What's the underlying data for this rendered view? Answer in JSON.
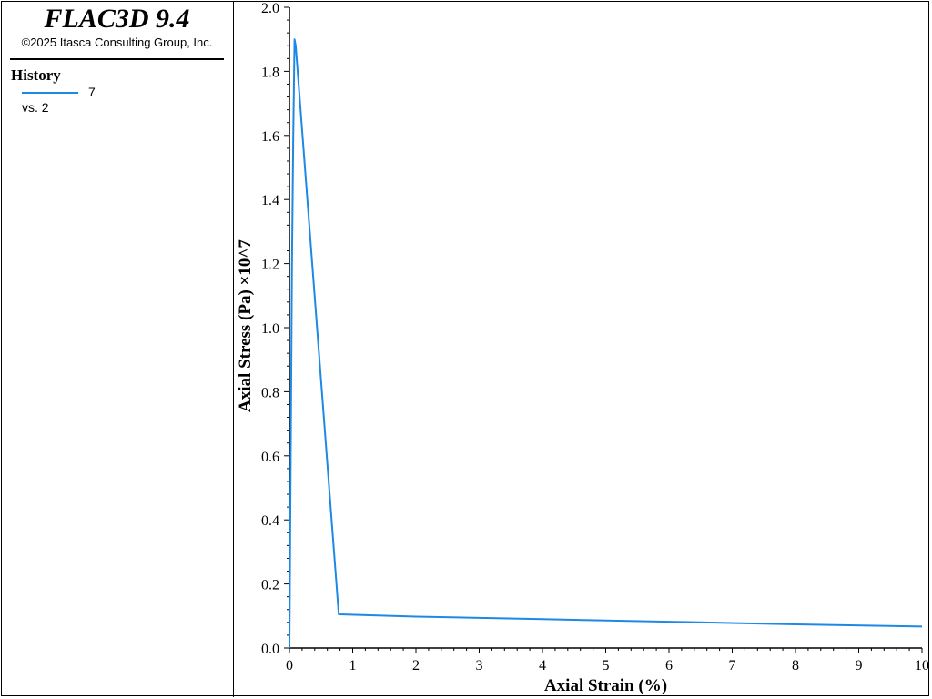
{
  "app": {
    "title": "FLAC3D 9.4",
    "copyright": "©2025 Itasca Consulting Group, Inc."
  },
  "legend": {
    "heading": "History",
    "series_id": "7",
    "vs_label": "vs. 2"
  },
  "chart_data": {
    "type": "line",
    "xlabel": "Axial Strain (%)",
    "ylabel": "Axial Stress (Pa) ×10^7",
    "xlim": [
      0,
      10
    ],
    "ylim": [
      0,
      2.0
    ],
    "x_ticks": [
      "0",
      "1",
      "2",
      "3",
      "4",
      "5",
      "6",
      "7",
      "8",
      "9",
      "10"
    ],
    "y_ticks": [
      "0.0",
      "0.2",
      "0.4",
      "0.6",
      "0.8",
      "1.0",
      "1.2",
      "1.4",
      "1.6",
      "1.8",
      "2.0"
    ],
    "grid": false,
    "line_color": "#1e88e5",
    "series": [
      {
        "name": "7",
        "x": [
          0,
          0.02,
          0.04,
          0.06,
          0.08,
          0.1,
          0.78,
          2,
          4,
          6,
          8,
          10
        ],
        "y": [
          0,
          0.6,
          1.2,
          1.6,
          1.9,
          1.88,
          0.105,
          0.098,
          0.09,
          0.082,
          0.074,
          0.067
        ]
      }
    ]
  }
}
